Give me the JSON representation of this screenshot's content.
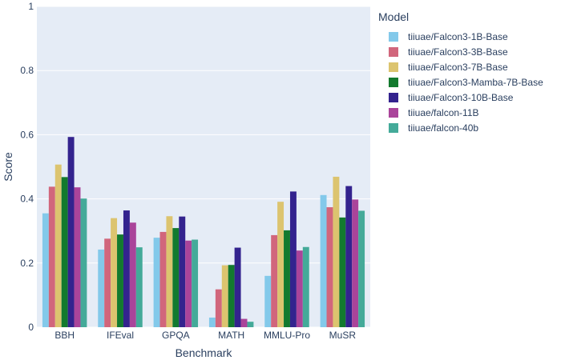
{
  "chart_data": {
    "type": "bar",
    "title": "",
    "xlabel": "Benchmark",
    "ylabel": "Score",
    "ylim": [
      0,
      1
    ],
    "yticks": [
      0,
      0.2,
      0.4,
      0.6,
      0.8,
      1
    ],
    "ytick_labels": [
      "0",
      "0.2",
      "0.4",
      "0.6",
      "0.8",
      "1"
    ],
    "categories": [
      "BBH",
      "IFEval",
      "GPQA",
      "MATH",
      "MMLU-Pro",
      "MuSR"
    ],
    "legend_title": "Model",
    "legend_position": "top-right, outside plot",
    "grid": true,
    "series": [
      {
        "name": "tiiuae/Falcon3-1B-Base",
        "color": "#83c9ea",
        "values": [
          0.355,
          0.242,
          0.279,
          0.03,
          0.16,
          0.412
        ]
      },
      {
        "name": "tiiuae/Falcon3-3B-Base",
        "color": "#d1667c",
        "values": [
          0.438,
          0.276,
          0.297,
          0.118,
          0.287,
          0.374
        ]
      },
      {
        "name": "tiiuae/Falcon3-7B-Base",
        "color": "#dcc46f",
        "values": [
          0.507,
          0.34,
          0.346,
          0.193,
          0.391,
          0.469
        ]
      },
      {
        "name": "tiiuae/Falcon3-Mamba-7B-Base",
        "color": "#137a2e",
        "values": [
          0.468,
          0.289,
          0.309,
          0.194,
          0.302,
          0.342
        ]
      },
      {
        "name": "tiiuae/Falcon3-10B-Base",
        "color": "#33238e",
        "values": [
          0.593,
          0.364,
          0.345,
          0.248,
          0.423,
          0.44
        ]
      },
      {
        "name": "tiiuae/falcon-11B",
        "color": "#aa449a",
        "values": [
          0.436,
          0.326,
          0.27,
          0.026,
          0.239,
          0.398
        ]
      },
      {
        "name": "tiiuae/falcon-40b",
        "color": "#44aa99",
        "values": [
          0.401,
          0.249,
          0.273,
          0.017,
          0.25,
          0.363
        ]
      }
    ]
  }
}
